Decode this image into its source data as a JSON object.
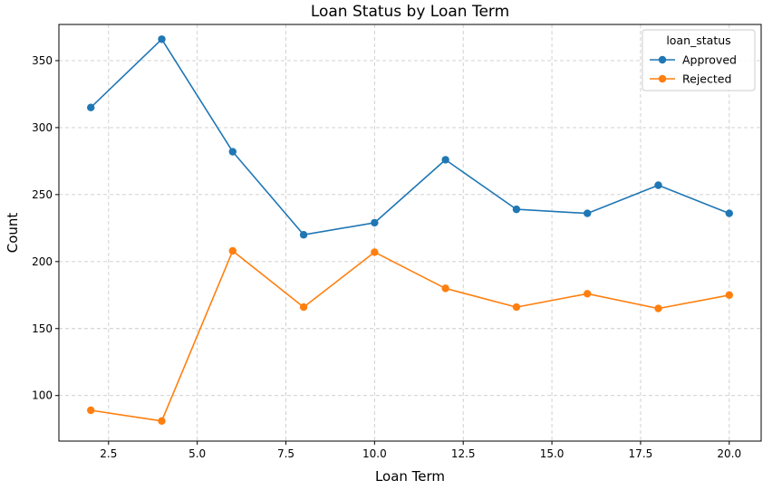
{
  "chart_data": {
    "type": "line",
    "title": "Loan Status by Loan Term",
    "xlabel": "Loan Term",
    "ylabel": "Count",
    "x": [
      2,
      4,
      6,
      8,
      10,
      12,
      14,
      16,
      18,
      20
    ],
    "xlim": [
      1.1,
      20.9
    ],
    "ylim": [
      66,
      377
    ],
    "xticks": [
      "2.5",
      "5.0",
      "7.5",
      "10.0",
      "12.5",
      "15.0",
      "17.5",
      "20.0"
    ],
    "xtick_values": [
      2.5,
      5.0,
      7.5,
      10.0,
      12.5,
      15.0,
      17.5,
      20.0
    ],
    "yticks": [
      "100",
      "150",
      "200",
      "250",
      "300",
      "350"
    ],
    "ytick_values": [
      100,
      150,
      200,
      250,
      300,
      350
    ],
    "grid": true,
    "legend": {
      "title": "loan_status",
      "placement": "top-right"
    },
    "series": [
      {
        "name": " Approved",
        "color": "#1f77b4",
        "values": [
          315,
          366,
          282,
          220,
          229,
          276,
          239,
          236,
          257,
          236
        ]
      },
      {
        "name": " Rejected",
        "color": "#ff7f0e",
        "values": [
          89,
          81,
          208,
          166,
          207,
          180,
          166,
          176,
          165,
          175
        ]
      }
    ]
  }
}
